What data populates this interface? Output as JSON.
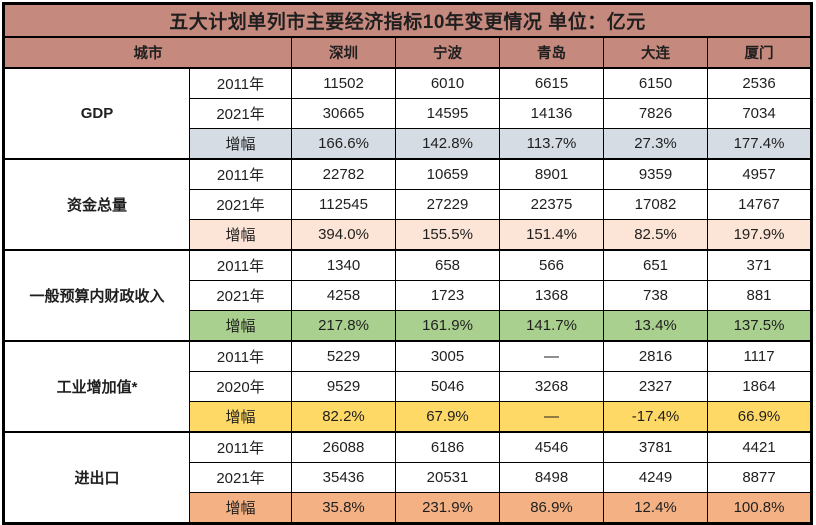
{
  "title": "五大计划单列市主要经济指标10年变更情况  单位：亿元",
  "colors": {
    "header_bg": "#c6897e",
    "border": "#000000",
    "text": "#1f1f1f",
    "gdp_growth_bg": "#d6dce4",
    "funds_growth_bg": "#fce4d6",
    "fiscal_growth_bg": "#a9d08e",
    "industry_growth_bg": "#ffd966",
    "trade_growth_bg": "#f4b183"
  },
  "chart_data": {
    "type": "table",
    "title": "五大计划单列市主要经济指标10年变更情况  单位：亿元",
    "unit": "亿元",
    "corner_label": "城市",
    "cities": [
      "深圳",
      "宁波",
      "青岛",
      "大连",
      "厦门"
    ],
    "sections": [
      {
        "indicator": "GDP",
        "growth_bg": "#d6dce4",
        "rows": [
          {
            "label": "2011年",
            "is_growth": false,
            "values": [
              "11502",
              "6010",
              "6615",
              "6150",
              "2536"
            ]
          },
          {
            "label": "2021年",
            "is_growth": false,
            "values": [
              "30665",
              "14595",
              "14136",
              "7826",
              "7034"
            ]
          },
          {
            "label": "增幅",
            "is_growth": true,
            "values": [
              "166.6%",
              "142.8%",
              "113.7%",
              "27.3%",
              "177.4%"
            ]
          }
        ]
      },
      {
        "indicator": "资金总量",
        "growth_bg": "#fce4d6",
        "rows": [
          {
            "label": "2011年",
            "is_growth": false,
            "values": [
              "22782",
              "10659",
              "8901",
              "9359",
              "4957"
            ]
          },
          {
            "label": "2021年",
            "is_growth": false,
            "values": [
              "112545",
              "27229",
              "22375",
              "17082",
              "14767"
            ]
          },
          {
            "label": "增幅",
            "is_growth": true,
            "values": [
              "394.0%",
              "155.5%",
              "151.4%",
              "82.5%",
              "197.9%"
            ]
          }
        ]
      },
      {
        "indicator": "一般预算内财政收入",
        "growth_bg": "#a9d08e",
        "rows": [
          {
            "label": "2011年",
            "is_growth": false,
            "values": [
              "1340",
              "658",
              "566",
              "651",
              "371"
            ]
          },
          {
            "label": "2021年",
            "is_growth": false,
            "values": [
              "4258",
              "1723",
              "1368",
              "738",
              "881"
            ]
          },
          {
            "label": "增幅",
            "is_growth": true,
            "values": [
              "217.8%",
              "161.9%",
              "141.7%",
              "13.4%",
              "137.5%"
            ]
          }
        ]
      },
      {
        "indicator": "工业增加值*",
        "growth_bg": "#ffd966",
        "rows": [
          {
            "label": "2011年",
            "is_growth": false,
            "values": [
              "5229",
              "3005",
              "—",
              "2816",
              "1117"
            ]
          },
          {
            "label": "2020年",
            "is_growth": false,
            "values": [
              "9529",
              "5046",
              "3268",
              "2327",
              "1864"
            ]
          },
          {
            "label": "增幅",
            "is_growth": true,
            "values": [
              "82.2%",
              "67.9%",
              "—",
              "-17.4%",
              "66.9%"
            ]
          }
        ]
      },
      {
        "indicator": "进出口",
        "growth_bg": "#f4b183",
        "rows": [
          {
            "label": "2011年",
            "is_growth": false,
            "values": [
              "26088",
              "6186",
              "4546",
              "3781",
              "4421"
            ]
          },
          {
            "label": "2021年",
            "is_growth": false,
            "values": [
              "35436",
              "20531",
              "8498",
              "4249",
              "8877"
            ]
          },
          {
            "label": "增幅",
            "is_growth": true,
            "values": [
              "35.8%",
              "231.9%",
              "86.9%",
              "12.4%",
              "100.8%"
            ]
          }
        ]
      }
    ]
  }
}
